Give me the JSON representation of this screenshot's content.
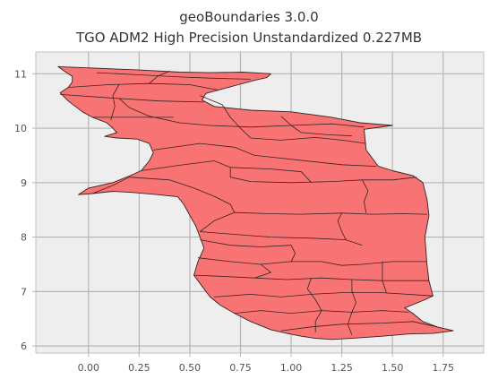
{
  "title": {
    "line1": "geoBoundaries 3.0.0",
    "line2": "TGO ADM2 High Precision Unstandardized 0.227MB"
  },
  "chart_data": {
    "type": "map",
    "xlim": [
      -0.26,
      1.95
    ],
    "ylim": [
      5.87,
      11.4
    ],
    "x_ticks": [
      0.0,
      0.25,
      0.5,
      0.75,
      1.0,
      1.25,
      1.5,
      1.75
    ],
    "x_tick_labels": [
      "0.00",
      "0.25",
      "0.50",
      "0.75",
      "1.00",
      "1.25",
      "1.50",
      "1.75"
    ],
    "y_ticks": [
      6,
      7,
      8,
      9,
      10,
      11
    ],
    "y_tick_labels": [
      "6",
      "7",
      "8",
      "9",
      "10",
      "11"
    ],
    "grid": true,
    "colors": {
      "fill": "#f87373",
      "edge": "#3a2020",
      "background": "#eeeeee",
      "grid": "#b5b5b5",
      "frame": "#c0c0c0"
    },
    "outline": [
      [
        -0.15,
        11.13
      ],
      [
        0.05,
        11.1
      ],
      [
        0.25,
        11.07
      ],
      [
        0.45,
        11.03
      ],
      [
        0.6,
        11.02
      ],
      [
        0.76,
        11.03
      ],
      [
        0.9,
        11.0
      ],
      [
        0.88,
        10.93
      ],
      [
        0.82,
        10.88
      ],
      [
        0.74,
        10.8
      ],
      [
        0.66,
        10.72
      ],
      [
        0.58,
        10.64
      ],
      [
        0.56,
        10.52
      ],
      [
        0.62,
        10.4
      ],
      [
        0.8,
        10.33
      ],
      [
        1.0,
        10.3
      ],
      [
        1.2,
        10.2
      ],
      [
        1.34,
        10.1
      ],
      [
        1.5,
        10.05
      ],
      [
        1.36,
        9.98
      ],
      [
        1.37,
        9.6
      ],
      [
        1.43,
        9.3
      ],
      [
        1.5,
        9.22
      ],
      [
        1.6,
        9.13
      ],
      [
        1.65,
        9.0
      ],
      [
        1.67,
        8.7
      ],
      [
        1.68,
        8.4
      ],
      [
        1.66,
        8.0
      ],
      [
        1.67,
        7.5
      ],
      [
        1.68,
        7.2
      ],
      [
        1.7,
        6.92
      ],
      [
        1.66,
        6.85
      ],
      [
        1.56,
        6.7
      ],
      [
        1.6,
        6.6
      ],
      [
        1.65,
        6.45
      ],
      [
        1.72,
        6.35
      ],
      [
        1.8,
        6.28
      ],
      [
        1.7,
        6.23
      ],
      [
        1.58,
        6.22
      ],
      [
        1.45,
        6.18
      ],
      [
        1.3,
        6.14
      ],
      [
        1.2,
        6.12
      ],
      [
        1.12,
        6.14
      ],
      [
        1.05,
        6.18
      ],
      [
        0.98,
        6.23
      ],
      [
        0.9,
        6.3
      ],
      [
        0.8,
        6.45
      ],
      [
        0.72,
        6.6
      ],
      [
        0.65,
        6.75
      ],
      [
        0.6,
        6.9
      ],
      [
        0.56,
        7.1
      ],
      [
        0.52,
        7.3
      ],
      [
        0.54,
        7.55
      ],
      [
        0.57,
        7.8
      ],
      [
        0.55,
        8.0
      ],
      [
        0.53,
        8.2
      ],
      [
        0.5,
        8.4
      ],
      [
        0.47,
        8.6
      ],
      [
        0.44,
        8.74
      ],
      [
        0.34,
        8.78
      ],
      [
        0.22,
        8.82
      ],
      [
        0.12,
        8.84
      ],
      [
        0.02,
        8.8
      ],
      [
        -0.05,
        8.78
      ],
      [
        0.0,
        8.9
      ],
      [
        0.12,
        9.0
      ],
      [
        0.2,
        9.12
      ],
      [
        0.26,
        9.22
      ],
      [
        0.3,
        9.4
      ],
      [
        0.32,
        9.55
      ],
      [
        0.3,
        9.72
      ],
      [
        0.24,
        9.8
      ],
      [
        0.14,
        9.82
      ],
      [
        0.08,
        9.85
      ],
      [
        0.14,
        9.92
      ],
      [
        0.12,
        10.0
      ],
      [
        0.09,
        10.1
      ],
      [
        0.02,
        10.2
      ],
      [
        -0.03,
        10.3
      ],
      [
        -0.1,
        10.5
      ],
      [
        -0.14,
        10.65
      ],
      [
        -0.1,
        10.75
      ],
      [
        -0.08,
        10.85
      ],
      [
        -0.08,
        10.95
      ],
      [
        -0.12,
        11.05
      ],
      [
        -0.15,
        11.13
      ]
    ],
    "boundaries": [
      [
        [
          -0.1,
          10.75
        ],
        [
          0.1,
          10.8
        ],
        [
          0.3,
          10.82
        ],
        [
          0.5,
          10.8
        ],
        [
          0.64,
          10.7
        ]
      ],
      [
        [
          0.04,
          11.02
        ],
        [
          0.25,
          10.98
        ],
        [
          0.45,
          10.94
        ],
        [
          0.6,
          10.92
        ],
        [
          0.8,
          10.9
        ]
      ],
      [
        [
          0.3,
          10.82
        ],
        [
          0.34,
          10.95
        ],
        [
          0.4,
          11.05
        ]
      ],
      [
        [
          0.15,
          10.8
        ],
        [
          0.12,
          10.6
        ],
        [
          0.13,
          10.4
        ],
        [
          0.11,
          10.15
        ]
      ],
      [
        [
          -0.14,
          10.62
        ],
        [
          0.13,
          10.55
        ],
        [
          0.35,
          10.5
        ],
        [
          0.57,
          10.48
        ]
      ],
      [
        [
          0.15,
          10.55
        ],
        [
          0.2,
          10.38
        ],
        [
          0.3,
          10.22
        ],
        [
          0.45,
          10.1
        ],
        [
          0.6,
          10.05
        ],
        [
          0.8,
          10.02
        ],
        [
          1.0,
          10.05
        ],
        [
          1.2,
          10.08
        ],
        [
          1.36,
          10.02
        ]
      ],
      [
        [
          0.02,
          10.2
        ],
        [
          0.22,
          10.2
        ],
        [
          0.42,
          10.2
        ]
      ],
      [
        [
          0.55,
          10.6
        ],
        [
          0.66,
          10.43
        ],
        [
          0.7,
          10.2
        ],
        [
          0.75,
          10.0
        ],
        [
          0.8,
          9.82
        ],
        [
          0.95,
          9.78
        ],
        [
          1.12,
          9.83
        ],
        [
          1.25,
          9.78
        ],
        [
          1.37,
          9.72
        ]
      ],
      [
        [
          0.95,
          10.22
        ],
        [
          1.0,
          10.05
        ],
        [
          1.05,
          9.92
        ],
        [
          1.18,
          9.88
        ],
        [
          1.3,
          9.86
        ]
      ],
      [
        [
          0.32,
          9.6
        ],
        [
          0.55,
          9.72
        ],
        [
          0.72,
          9.65
        ],
        [
          0.82,
          9.5
        ],
        [
          0.95,
          9.45
        ],
        [
          1.12,
          9.38
        ],
        [
          1.25,
          9.33
        ],
        [
          1.42,
          9.3
        ]
      ],
      [
        [
          0.26,
          9.22
        ],
        [
          0.45,
          9.32
        ],
        [
          0.62,
          9.4
        ],
        [
          0.7,
          9.28
        ],
        [
          0.7,
          9.1
        ],
        [
          0.8,
          9.02
        ],
        [
          1.0,
          9.0
        ],
        [
          1.2,
          9.02
        ],
        [
          1.35,
          9.05
        ],
        [
          1.5,
          9.05
        ],
        [
          1.62,
          9.1
        ]
      ],
      [
        [
          0.02,
          8.8
        ],
        [
          0.12,
          8.95
        ],
        [
          0.2,
          9.1
        ],
        [
          0.4,
          9.05
        ],
        [
          0.52,
          8.9
        ],
        [
          0.62,
          8.75
        ],
        [
          0.7,
          8.6
        ],
        [
          0.72,
          8.45
        ],
        [
          0.62,
          8.3
        ],
        [
          0.55,
          8.1
        ]
      ],
      [
        [
          0.7,
          9.28
        ],
        [
          0.9,
          9.25
        ],
        [
          1.05,
          9.2
        ],
        [
          1.1,
          9.0
        ]
      ],
      [
        [
          0.72,
          8.45
        ],
        [
          0.9,
          8.43
        ],
        [
          1.05,
          8.42
        ],
        [
          1.25,
          8.44
        ],
        [
          1.4,
          8.42
        ],
        [
          1.55,
          8.43
        ],
        [
          1.67,
          8.42
        ]
      ],
      [
        [
          1.25,
          8.44
        ],
        [
          1.23,
          8.3
        ],
        [
          1.25,
          8.1
        ],
        [
          1.27,
          7.95
        ],
        [
          1.35,
          7.85
        ]
      ],
      [
        [
          1.35,
          9.05
        ],
        [
          1.38,
          8.85
        ],
        [
          1.36,
          8.65
        ],
        [
          1.37,
          8.44
        ]
      ],
      [
        [
          0.55,
          8.1
        ],
        [
          0.72,
          8.05
        ],
        [
          0.9,
          8.0
        ],
        [
          1.1,
          7.98
        ],
        [
          1.27,
          7.95
        ]
      ],
      [
        [
          0.55,
          7.95
        ],
        [
          0.7,
          7.85
        ],
        [
          0.85,
          7.82
        ],
        [
          1.0,
          7.85
        ]
      ],
      [
        [
          0.54,
          7.62
        ],
        [
          0.7,
          7.55
        ],
        [
          0.85,
          7.5
        ],
        [
          1.0,
          7.55
        ],
        [
          1.15,
          7.55
        ],
        [
          1.25,
          7.48
        ],
        [
          1.35,
          7.5
        ],
        [
          1.5,
          7.55
        ],
        [
          1.67,
          7.55
        ]
      ],
      [
        [
          1.0,
          7.85
        ],
        [
          1.02,
          7.7
        ],
        [
          1.0,
          7.55
        ]
      ],
      [
        [
          0.52,
          7.3
        ],
        [
          0.65,
          7.28
        ],
        [
          0.82,
          7.25
        ],
        [
          0.98,
          7.22
        ],
        [
          1.15,
          7.25
        ],
        [
          1.3,
          7.22
        ],
        [
          1.45,
          7.2
        ],
        [
          1.68,
          7.2
        ]
      ],
      [
        [
          0.62,
          6.9
        ],
        [
          0.8,
          6.95
        ],
        [
          0.95,
          6.9
        ],
        [
          1.1,
          6.95
        ],
        [
          1.25,
          6.98
        ],
        [
          1.45,
          6.98
        ],
        [
          1.7,
          6.92
        ]
      ],
      [
        [
          0.72,
          6.6
        ],
        [
          0.85,
          6.65
        ],
        [
          1.0,
          6.6
        ],
        [
          1.15,
          6.65
        ],
        [
          1.3,
          6.62
        ],
        [
          1.45,
          6.65
        ],
        [
          1.58,
          6.62
        ]
      ],
      [
        [
          0.95,
          6.28
        ],
        [
          1.1,
          6.35
        ],
        [
          1.25,
          6.4
        ],
        [
          1.45,
          6.42
        ],
        [
          1.6,
          6.45
        ],
        [
          1.72,
          6.35
        ]
      ],
      [
        [
          1.1,
          7.25
        ],
        [
          1.08,
          7.05
        ],
        [
          1.12,
          6.85
        ],
        [
          1.15,
          6.65
        ],
        [
          1.12,
          6.45
        ],
        [
          1.12,
          6.25
        ]
      ],
      [
        [
          1.3,
          7.22
        ],
        [
          1.3,
          7.0
        ],
        [
          1.32,
          6.8
        ],
        [
          1.3,
          6.62
        ],
        [
          1.28,
          6.4
        ],
        [
          1.3,
          6.2
        ]
      ],
      [
        [
          1.45,
          7.55
        ],
        [
          1.45,
          7.2
        ],
        [
          1.47,
          6.98
        ]
      ],
      [
        [
          0.85,
          7.5
        ],
        [
          0.9,
          7.35
        ],
        [
          0.82,
          7.25
        ]
      ]
    ]
  }
}
